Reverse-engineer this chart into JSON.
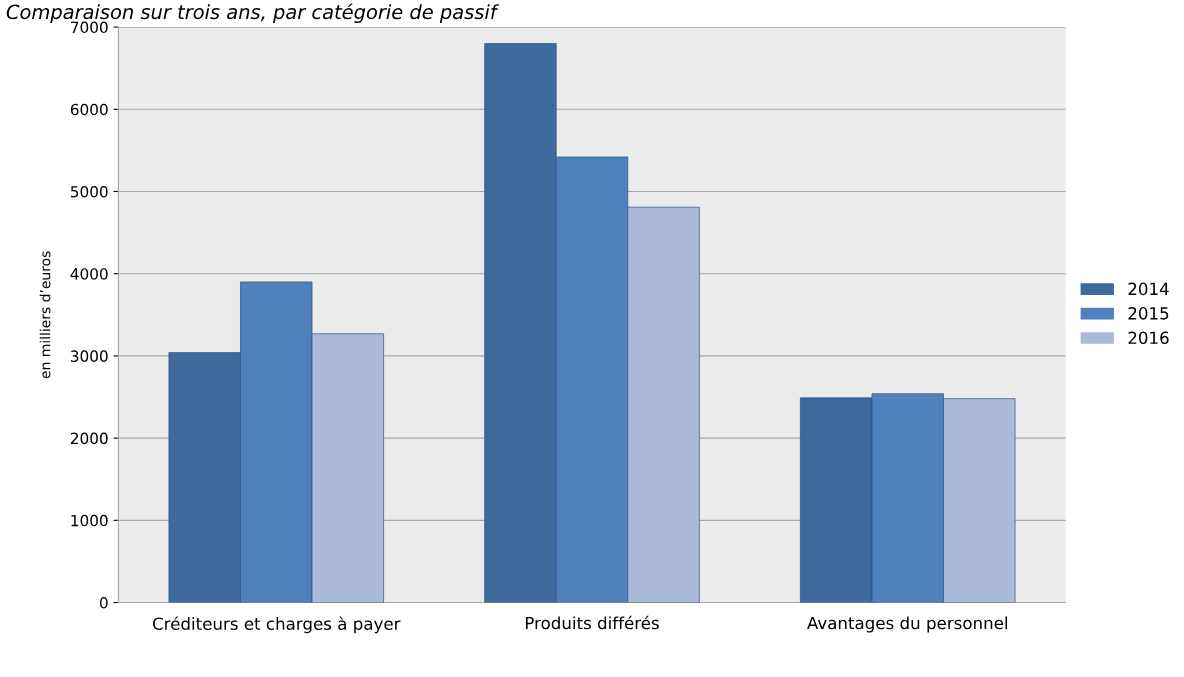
{
  "chart_data": {
    "type": "bar",
    "title": "Comparaison sur trois ans, par catégorie de passif",
    "ylabel": "en milliers d’euros",
    "categories": [
      "Créditeurs et charges à payer",
      "Produits différés",
      "Avantages du personnel"
    ],
    "series": [
      {
        "name": "2014",
        "color": "#3f6a9c",
        "values": [
          3040,
          6800,
          2490
        ]
      },
      {
        "name": "2015",
        "color": "#4f81bd",
        "values": [
          3900,
          5420,
          2540
        ]
      },
      {
        "name": "2016",
        "color": "#abbad8",
        "values": [
          3270,
          4810,
          2480
        ]
      }
    ],
    "ylim": [
      0,
      7000
    ],
    "yticks": [
      0,
      1000,
      2000,
      3000,
      4000,
      5000,
      6000,
      7000
    ],
    "grid": "y",
    "legend": "right"
  }
}
